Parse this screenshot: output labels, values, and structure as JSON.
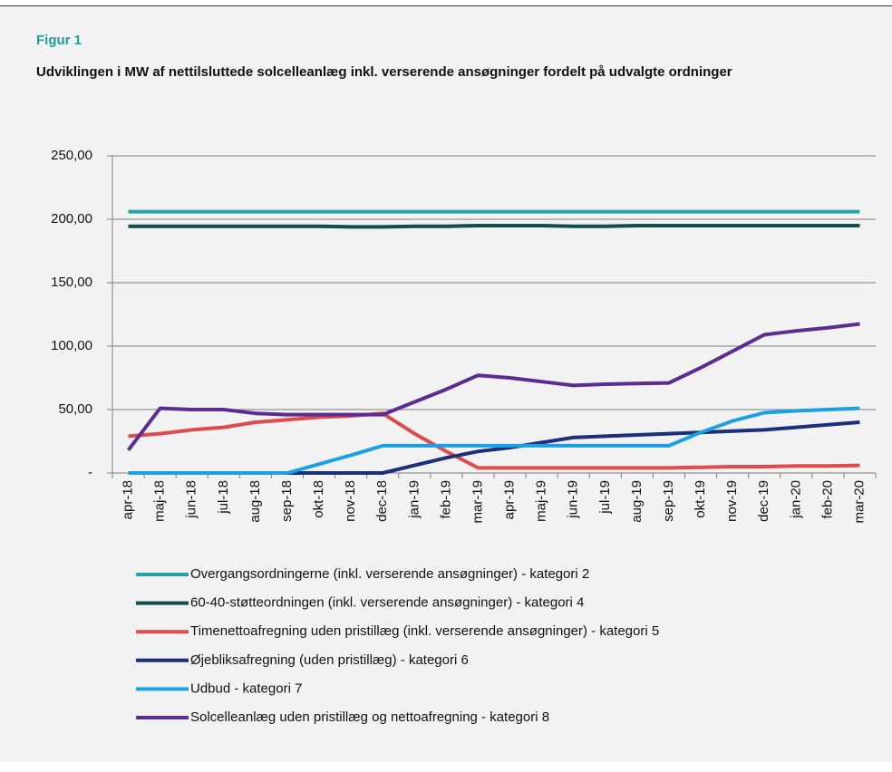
{
  "chart_data": {
    "type": "line",
    "label": "Figur 1",
    "title": "Udviklingen i MW af nettilsluttede solcelleanlæg inkl. verserende ansøgninger fordelt på udvalgte ordninger",
    "categories": [
      "apr-18",
      "maj-18",
      "jun-18",
      "jul-18",
      "aug-18",
      "sep-18",
      "okt-18",
      "nov-18",
      "dec-18",
      "jan-19",
      "feb-19",
      "mar-19",
      "apr-19",
      "maj-19",
      "jun-19",
      "jul-19",
      "aug-19",
      "sep-19",
      "okt-19",
      "nov-19",
      "dec-19",
      "jan-20",
      "feb-20",
      "mar-20"
    ],
    "ylim": [
      0,
      250
    ],
    "yticks": [
      {
        "value": 0,
        "label": "-"
      },
      {
        "value": 50,
        "label": "50,00"
      },
      {
        "value": 100,
        "label": "100,00"
      },
      {
        "value": 150,
        "label": "150,00"
      },
      {
        "value": 200,
        "label": "200,00"
      },
      {
        "value": 250,
        "label": "250,00"
      }
    ],
    "grid": true,
    "series": [
      {
        "name": "Overgangsordningerne (inkl. verserende ansøgninger) - kategori 2",
        "color": "#2aa3a6",
        "values": [
          206,
          206,
          206,
          206,
          206,
          206,
          206,
          206,
          206,
          206,
          206,
          206,
          206,
          206,
          206,
          206,
          206,
          206,
          206,
          206,
          206,
          206,
          206,
          206
        ]
      },
      {
        "name": "60-40-støtteordningen (inkl. verserende ansøgninger) - kategori 4",
        "color": "#0e4f4c",
        "values": [
          194.5,
          194.5,
          194.5,
          194.5,
          194.5,
          194.5,
          194.5,
          194,
          194,
          194.5,
          194.5,
          195,
          195,
          195,
          194.5,
          194.5,
          195,
          195,
          195,
          195,
          195,
          195,
          195,
          195
        ]
      },
      {
        "name": "Timenettoafregning uden pristillæg (inkl. verserende ansøgninger) - kategori 5",
        "color": "#e04a4a",
        "values": [
          29,
          31,
          34,
          36,
          40,
          42,
          44,
          45,
          47,
          31,
          17,
          4,
          4,
          4,
          4,
          4,
          4,
          4,
          4.5,
          5,
          5,
          5.5,
          5.5,
          6
        ]
      },
      {
        "name": "Øjebliksafregning (uden pristillæg) - kategori 6",
        "color": "#1c2f7a",
        "values": [
          0,
          0,
          0,
          0,
          0,
          0,
          0,
          0,
          0,
          6,
          12,
          17,
          20,
          24,
          28,
          29,
          30,
          31,
          32,
          33,
          34,
          36,
          38,
          40
        ]
      },
      {
        "name": "Udbud - kategori 7",
        "color": "#1ba1e2",
        "values": [
          0,
          0,
          0,
          0,
          0,
          0,
          7,
          14,
          21.5,
          21.5,
          21.5,
          21.5,
          21.5,
          21.5,
          21.5,
          21.5,
          21.5,
          21.5,
          32,
          41,
          47.5,
          49,
          50,
          51
        ]
      },
      {
        "name": "Solcelleanlæg uden pristillæg og nettoafregning - kategori 8",
        "color": "#5b2d91",
        "values": [
          18,
          51,
          50,
          50,
          47,
          46,
          46,
          46,
          46,
          56,
          66,
          77,
          75,
          72,
          69,
          70,
          70.5,
          71,
          83,
          96,
          109,
          112,
          114.5,
          117.5
        ]
      }
    ]
  }
}
